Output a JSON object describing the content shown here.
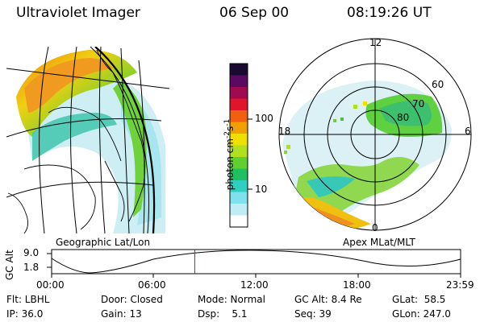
{
  "header": {
    "instrument": "Ultraviolet Imager",
    "date": "06 Sep 00",
    "time": "08:19:26 UT"
  },
  "geo_panel": {
    "label": "Geographic Lat/Lon"
  },
  "polar_panel": {
    "label": "Apex MLat/MLT",
    "mlt_labels": [
      "12",
      "18",
      "6",
      "0"
    ],
    "lat_labels": [
      "60",
      "70",
      "80"
    ]
  },
  "colorbar": {
    "unit_label": "photon cm",
    "unit_exp1": "-2",
    "unit_s": "s",
    "unit_exp2": "-1",
    "ticks": [
      "100",
      "10"
    ],
    "colors": [
      "#1a0a30",
      "#5a0a60",
      "#a00a50",
      "#e0142a",
      "#f06010",
      "#f0a000",
      "#f0e000",
      "#b0e020",
      "#60d030",
      "#20c060",
      "#30d0c0",
      "#80e0f0",
      "#c0ecf5",
      "#ffffff"
    ]
  },
  "altitude_plot": {
    "ylabel": "GC Alt",
    "yticks": [
      "9.0",
      "1.8"
    ],
    "xticks": [
      "00:00",
      "06:00",
      "12:00",
      "18:00",
      "23:59"
    ],
    "current_time_fraction": 0.35,
    "marker_color": "#ff0000"
  },
  "info": {
    "flt": "Flt: LBHL",
    "door": "Door: Closed",
    "mode": "Mode: Normal",
    "gc_alt": "GC Alt: 8.4 Re",
    "glat": "GLat:  58.5",
    "ip": "IP: 36.0",
    "gain": "Gain: 13",
    "dsp": "Dsp:    5.1",
    "seq": "Seq: 39",
    "glon": "GLon: 247.0"
  }
}
